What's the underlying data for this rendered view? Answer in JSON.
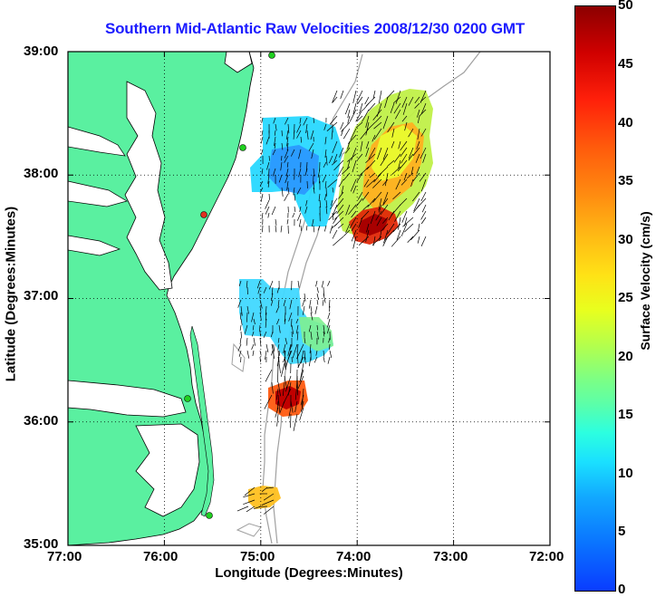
{
  "title": "Southern Mid-Atlantic Raw Velocities 2008/12/30 0200 GMT",
  "x_axis": {
    "label": "Longitude (Degrees:Minutes)",
    "ticks": [
      "77:00",
      "76:00",
      "75:00",
      "74:00",
      "73:00",
      "72:00"
    ]
  },
  "y_axis": {
    "label": "Latitude (Degrees:Minutes)",
    "ticks": [
      "39:00",
      "38:00",
      "37:00",
      "36:00",
      "35:00"
    ]
  },
  "colorbar": {
    "label": "Surface Velocity (cm/s)",
    "ticks": [
      "50",
      "45",
      "40",
      "35",
      "30",
      "25",
      "20",
      "15",
      "10",
      "5",
      "0"
    ],
    "min": 0,
    "max": 50
  },
  "map_extent": {
    "lon": [
      -77,
      -72
    ],
    "lat": [
      35,
      39
    ]
  },
  "colors": {
    "land": "#5af0a0",
    "title": "#1c1cff",
    "isobath": "#a0a0a0"
  },
  "chart_data": {
    "type": "heatmap",
    "title": "Southern Mid-Atlantic Raw Velocities 2008/12/30 0200 GMT",
    "xlabel": "Longitude (Degrees:Minutes)",
    "ylabel": "Latitude (Degrees:Minutes)",
    "xlim": [
      -77,
      -72
    ],
    "ylim": [
      35,
      39
    ],
    "grid": true,
    "value_label": "Surface Velocity (cm/s)",
    "value_range": [
      0,
      50
    ],
    "regions": [
      {
        "name": "",
        "lon_range": [
          -74.9,
          -73.3
        ],
        "lat_range": [
          37.6,
          38.9
        ],
        "velocity_approx": 15
      },
      {
        "name": "",
        "lon_range": [
          -74.2,
          -73.8
        ],
        "lat_range": [
          37.6,
          37.8
        ],
        "velocity_approx": 45
      },
      {
        "name": "",
        "lon_range": [
          -74.95,
          -74.5
        ],
        "lat_range": [
          37.5,
          38.5
        ],
        "velocity_approx": 6
      },
      {
        "name": "",
        "lon_range": [
          -75.2,
          -74.3
        ],
        "lat_range": [
          36.5,
          37.2
        ],
        "velocity_approx": 10
      },
      {
        "name": "",
        "lon_range": [
          -74.9,
          -74.5
        ],
        "lat_range": [
          36.1,
          36.4
        ],
        "velocity_approx": 45
      },
      {
        "name": "",
        "lon_range": [
          -75.1,
          -74.8
        ],
        "lat_range": [
          35.4,
          35.6
        ],
        "velocity_approx": 25
      }
    ]
  }
}
